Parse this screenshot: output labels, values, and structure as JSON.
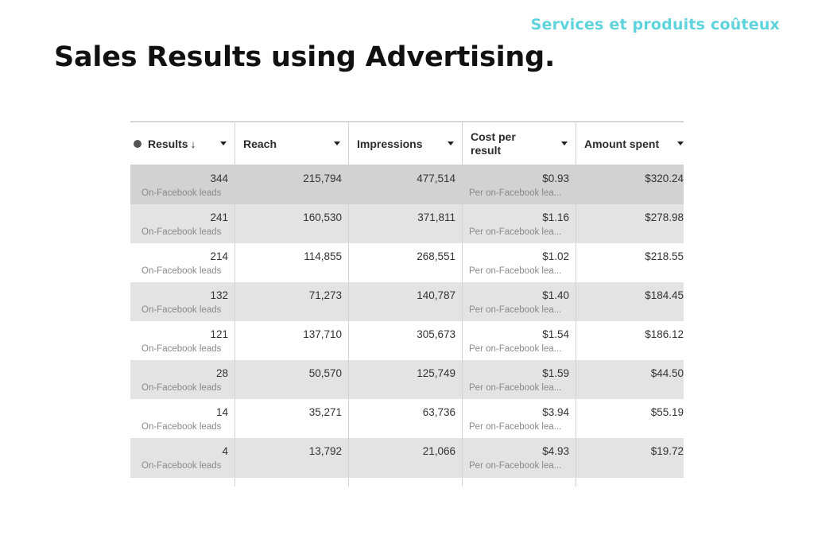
{
  "tagline": "Services et produits coûteux",
  "title": "Sales Results using Advertising.",
  "table": {
    "headers": {
      "results": "Results",
      "results_sort": "↓",
      "reach": "Reach",
      "impressions": "Impressions",
      "cost_line1": "Cost per",
      "cost_line2": "result",
      "amount": "Amount spent"
    },
    "rows": [
      {
        "results": "344",
        "results_sub": "On-Facebook leads",
        "reach": "215,794",
        "impressions": "477,514",
        "cost": "$0.93",
        "cost_sub": "Per on-Facebook lea...",
        "amount": "$320.24"
      },
      {
        "results": "241",
        "results_sub": "On-Facebook leads",
        "reach": "160,530",
        "impressions": "371,811",
        "cost": "$1.16",
        "cost_sub": "Per on-Facebook lea...",
        "amount": "$278.98"
      },
      {
        "results": "214",
        "results_sub": "On-Facebook leads",
        "reach": "114,855",
        "impressions": "268,551",
        "cost": "$1.02",
        "cost_sub": "Per on-Facebook lea...",
        "amount": "$218.55"
      },
      {
        "results": "132",
        "results_sub": "On-Facebook leads",
        "reach": "71,273",
        "impressions": "140,787",
        "cost": "$1.40",
        "cost_sub": "Per on-Facebook lea...",
        "amount": "$184.45"
      },
      {
        "results": "121",
        "results_sub": "On-Facebook leads",
        "reach": "137,710",
        "impressions": "305,673",
        "cost": "$1.54",
        "cost_sub": "Per on-Facebook lea...",
        "amount": "$186.12"
      },
      {
        "results": "28",
        "results_sub": "On-Facebook leads",
        "reach": "50,570",
        "impressions": "125,749",
        "cost": "$1.59",
        "cost_sub": "Per on-Facebook lea...",
        "amount": "$44.50"
      },
      {
        "results": "14",
        "results_sub": "On-Facebook leads",
        "reach": "35,271",
        "impressions": "63,736",
        "cost": "$3.94",
        "cost_sub": "Per on-Facebook lea...",
        "amount": "$55.19"
      },
      {
        "results": "4",
        "results_sub": "On-Facebook leads",
        "reach": "13,792",
        "impressions": "21,066",
        "cost": "$4.93",
        "cost_sub": "Per on-Facebook lea...",
        "amount": "$19.72"
      }
    ],
    "row_styles": [
      "dark",
      "gray",
      "white",
      "gray",
      "white",
      "gray",
      "white",
      "gray"
    ]
  }
}
